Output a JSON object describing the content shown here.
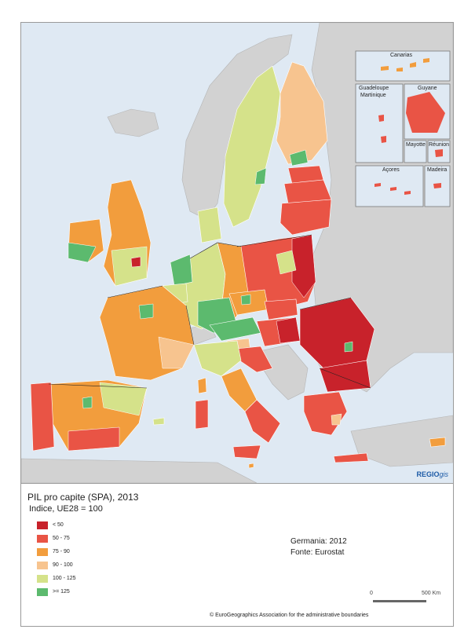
{
  "map": {
    "logo_prefix": "REGIO",
    "logo_suffix": "gis",
    "insets": {
      "canarias": "Canarias",
      "guadeloupe": "Guadeloupe",
      "martinique": "Martinique",
      "guyane": "Guyane",
      "mayotte": "Mayotte",
      "reunion": "Réunion",
      "acores": "Açores",
      "madeira": "Madeira"
    },
    "colors": {
      "sea": "#dfe9f3",
      "non_eu": "#d2d2d2",
      "lt50": "#c8222b",
      "c50_75": "#e95445",
      "c75_90": "#f29d3d",
      "c90_100": "#f7c48f",
      "c100_125": "#d5e28a",
      "ge125": "#5cba6e"
    }
  },
  "legend": {
    "title": "PIL pro capite (SPA), 2013",
    "subtitle": "Indice, UE28 = 100",
    "items": [
      {
        "label": "< 50",
        "color": "#c8222b"
      },
      {
        "label": "50 - 75",
        "color": "#e95445"
      },
      {
        "label": "75 - 90",
        "color": "#f29d3d"
      },
      {
        "label": "90 - 100",
        "color": "#f7c48f"
      },
      {
        "label": "100 - 125",
        "color": "#d5e28a"
      },
      {
        "label": ">= 125",
        "color": "#5cba6e"
      }
    ]
  },
  "notes": {
    "germany": "Germania: 2012",
    "source": "Fonte: Eurostat"
  },
  "scale": {
    "zero": "0",
    "max": "500 Km"
  },
  "copyright": "© EuroGeographics Association for the administrative boundaries"
}
